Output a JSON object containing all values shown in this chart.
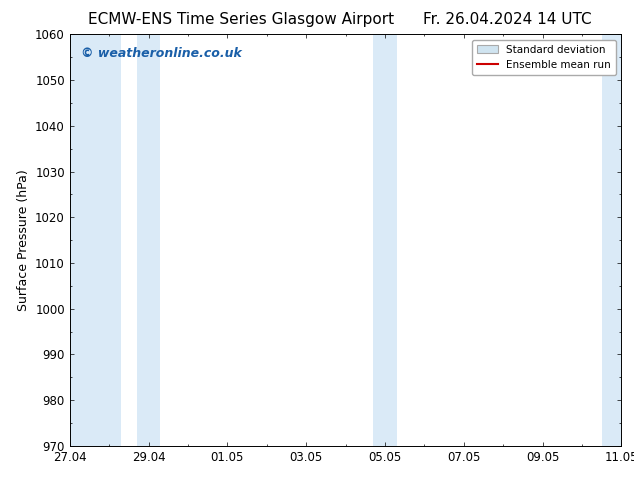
{
  "title_left": "ECMW-ENS Time Series Glasgow Airport",
  "title_right": "Fr. 26.04.2024 14 UTC",
  "ylabel": "Surface Pressure (hPa)",
  "ylim": [
    970,
    1060
  ],
  "yticks": [
    970,
    980,
    990,
    1000,
    1010,
    1020,
    1030,
    1040,
    1050,
    1060
  ],
  "xlim_start": 0,
  "xlim_end": 14,
  "xtick_positions": [
    0,
    2,
    4,
    6,
    8,
    10,
    12,
    14
  ],
  "xtick_labels": [
    "27.04",
    "29.04",
    "01.05",
    "03.05",
    "05.05",
    "07.05",
    "09.05",
    "11.05"
  ],
  "shaded_bands": [
    {
      "xmin": 0.0,
      "xmax": 1.3
    },
    {
      "xmin": 1.7,
      "xmax": 2.3
    },
    {
      "xmin": 7.7,
      "xmax": 8.3
    },
    {
      "xmin": 13.5,
      "xmax": 14.0
    }
  ],
  "band_color": "#daeaf7",
  "background_color": "#ffffff",
  "watermark_text": "© weatheronline.co.uk",
  "watermark_color": "#1a5fa8",
  "legend_stdev_facecolor": "#d0e4f0",
  "legend_stdev_edgecolor": "#aaaaaa",
  "legend_mean_color": "#cc0000",
  "title_fontsize": 11,
  "axis_label_fontsize": 9,
  "tick_fontsize": 8.5,
  "watermark_fontsize": 9
}
